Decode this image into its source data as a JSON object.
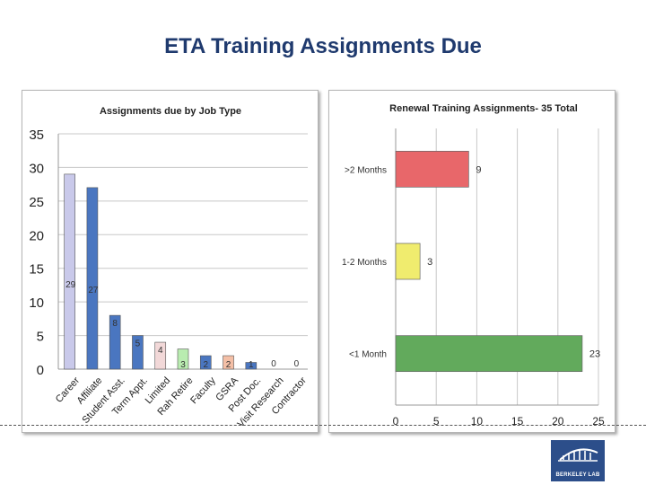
{
  "slide": {
    "title": "ETA Training Assignments Due"
  },
  "logo": {
    "text": "BERKELEY LAB"
  },
  "chart_data": [
    {
      "type": "bar",
      "title": "Assignments due by Job Type",
      "categories": [
        "Career",
        "Affiliate",
        "Student Asst.",
        "Term Appt.",
        "Limited",
        "Rah Retire",
        "Faculty",
        "GSRA",
        "Post Doc.",
        "Visit Research",
        "Contractor"
      ],
      "values": [
        29,
        27,
        8,
        5,
        4,
        3,
        2,
        2,
        1,
        0,
        0
      ],
      "colors": [
        "#c9c9ea",
        "#4a76c0",
        "#4a76c0",
        "#4a76c0",
        "#f2d8d8",
        "#b9ecb0",
        "#4a76c0",
        "#f4bfa6",
        "#4a76c0",
        "#4a76c0",
        "#4a76c0"
      ],
      "ylim": [
        0,
        35
      ],
      "yticks": [
        0,
        5,
        10,
        15,
        20,
        25,
        30,
        35
      ],
      "grid": true
    },
    {
      "type": "bar",
      "orientation": "horizontal",
      "title": "Renewal Training Assignments- 35 Total",
      "categories": [
        ">2 Months",
        "1-2 Months",
        "<1 Month"
      ],
      "values": [
        9,
        3,
        23
      ],
      "colors": [
        "#e8676a",
        "#f0ec6e",
        "#62aa5c"
      ],
      "xlim": [
        0,
        25
      ],
      "xticks": [
        0,
        5,
        10,
        15,
        20,
        25
      ],
      "grid": true
    }
  ]
}
